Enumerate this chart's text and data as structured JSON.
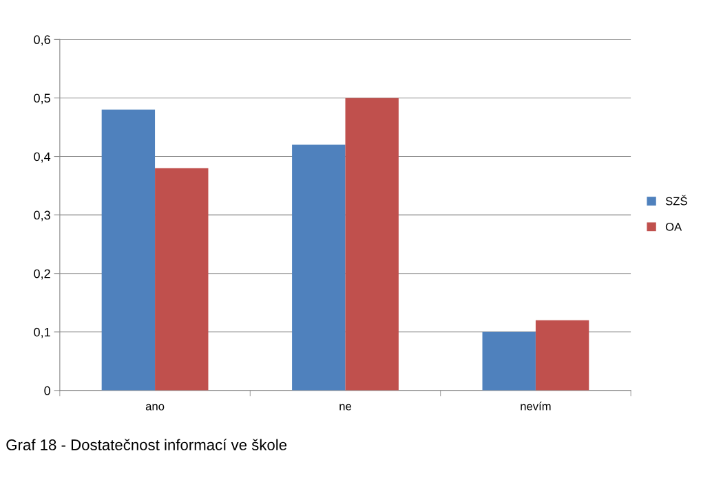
{
  "chart_data": {
    "type": "bar",
    "categories": [
      "ano",
      "ne",
      "nevím"
    ],
    "series": [
      {
        "name": "SZŠ",
        "color": "#4f81bd",
        "values": [
          0.48,
          0.42,
          0.1
        ]
      },
      {
        "name": "OA",
        "color": "#c0504d",
        "values": [
          0.38,
          0.5,
          0.12
        ]
      }
    ],
    "ylim": [
      0,
      0.6
    ],
    "yticks": [
      {
        "value": 0,
        "label": "0"
      },
      {
        "value": 0.1,
        "label": "0,1"
      },
      {
        "value": 0.2,
        "label": "0,2"
      },
      {
        "value": 0.3,
        "label": "0,3"
      },
      {
        "value": 0.4,
        "label": "0,4"
      },
      {
        "value": 0.5,
        "label": "0,5"
      },
      {
        "value": 0.6,
        "label": "0,6"
      }
    ],
    "grid": "y",
    "legend": "right",
    "annotations": [
      "Graf 18 - Dostatečnost informací ve škole"
    ]
  }
}
